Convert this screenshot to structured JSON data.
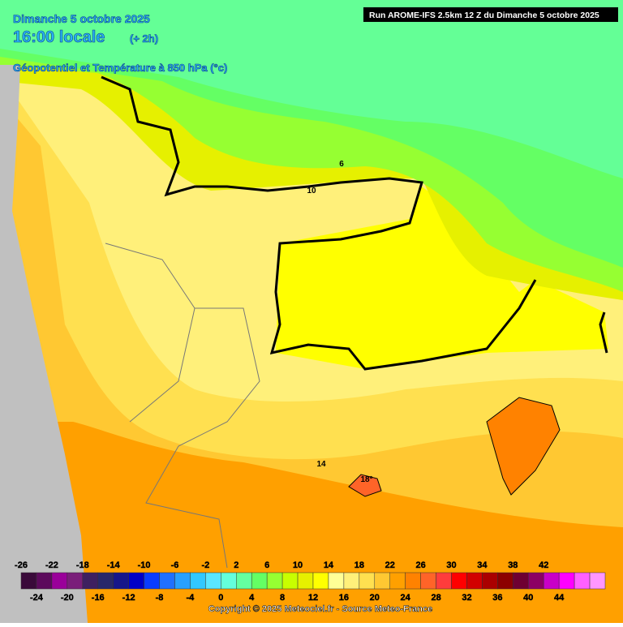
{
  "header": {
    "date": "Dimanche 5 octobre 2025",
    "time": "16:00 locale",
    "offset": "(+ 2h)",
    "field": "Géopotentiel et Température à 850 hPa (°c)",
    "run": "Run AROME-IFS 2.5km 12 Z du Dimanche 5 octobre 2025"
  },
  "contour_labels": [
    "6",
    "10",
    "14",
    "18°"
  ],
  "legend": {
    "top_labels": [
      "-26",
      "-22",
      "-18",
      "-14",
      "-10",
      "-6",
      "-2",
      "2",
      "6",
      "10",
      "14",
      "18",
      "22",
      "26",
      "30",
      "34",
      "38",
      "42"
    ],
    "bottom_labels": [
      "-24",
      "-20",
      "-16",
      "-12",
      "-8",
      "-4",
      "0",
      "4",
      "8",
      "12",
      "16",
      "20",
      "24",
      "28",
      "32",
      "36",
      "40",
      "44"
    ],
    "colors": [
      "#3a0a3a",
      "#5c0a5c",
      "#9a009a",
      "#7a1e7a",
      "#3e2060",
      "#28286a",
      "#16168a",
      "#0000c8",
      "#0a3cff",
      "#2070ff",
      "#28a0ff",
      "#32c8ff",
      "#5ae6ff",
      "#64ffdc",
      "#64ffa0",
      "#64ff64",
      "#96ff32",
      "#c8ff00",
      "#e6f000",
      "#ffff00",
      "#ffff96",
      "#fff07a",
      "#ffe050",
      "#ffc832",
      "#ffa000",
      "#ff8200",
      "#ff6428",
      "#ff3c3c",
      "#ff0000",
      "#d20000",
      "#aa0000",
      "#8c0000",
      "#6e0032",
      "#8c0064",
      "#c800c8",
      "#ff00ff",
      "#ff60ff",
      "#ff96ff"
    ]
  },
  "copyright": "Copyright © 2025 Meteociel.fr - Source Meteo-France"
}
